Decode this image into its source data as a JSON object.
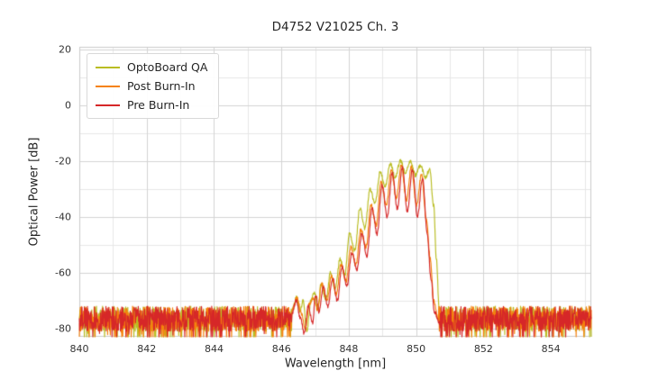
{
  "chart_data": {
    "type": "line",
    "title": "D4752 V21025 Ch. 3",
    "xlabel": "Wavelength [nm]",
    "ylabel": "Optical Power [dB]",
    "xlim": [
      840,
      855.2
    ],
    "ylim": [
      -83,
      21
    ],
    "xticks": [
      840,
      842,
      844,
      846,
      848,
      850,
      852,
      854
    ],
    "yticks": [
      20,
      0,
      -20,
      -40,
      -60,
      -80
    ],
    "grid": {
      "x_minor_step": 1,
      "y_minor_step": 10,
      "major_color": "#d4d4d4",
      "minor_color": "#e7e7e7",
      "frame_color": "#cccccc"
    },
    "legend_position": "upper left",
    "noise_floor": {
      "mean": -76.5,
      "spread": 9,
      "spike_prob": 0.08,
      "spike_extra": 8,
      "min": -83,
      "max": -68.5,
      "step_nm": 0.01
    },
    "series": [
      {
        "name": "OptoBoard QA",
        "color": "#b9bd22",
        "seed": 11,
        "envelope_range": [
          846.3,
          850.8
        ],
        "envelope": [
          [
            846.3,
            -74
          ],
          [
            846.45,
            -69
          ],
          [
            846.55,
            -74
          ],
          [
            846.65,
            -70
          ],
          [
            846.75,
            -81
          ],
          [
            846.88,
            -70
          ],
          [
            846.98,
            -67
          ],
          [
            847.08,
            -73
          ],
          [
            847.18,
            -64
          ],
          [
            847.32,
            -70
          ],
          [
            847.46,
            -60
          ],
          [
            847.6,
            -66
          ],
          [
            847.74,
            -55
          ],
          [
            847.88,
            -61
          ],
          [
            848.02,
            -46
          ],
          [
            848.18,
            -52
          ],
          [
            848.33,
            -37
          ],
          [
            848.48,
            -44
          ],
          [
            848.63,
            -30
          ],
          [
            848.78,
            -35
          ],
          [
            848.93,
            -24
          ],
          [
            849.08,
            -29
          ],
          [
            849.23,
            -21
          ],
          [
            849.38,
            -26
          ],
          [
            849.53,
            -19.8
          ],
          [
            849.68,
            -24
          ],
          [
            849.83,
            -20.3
          ],
          [
            849.98,
            -25
          ],
          [
            850.13,
            -21.3
          ],
          [
            850.27,
            -26
          ],
          [
            850.4,
            -23
          ],
          [
            850.52,
            -36
          ],
          [
            850.6,
            -55
          ],
          [
            850.68,
            -72
          ],
          [
            850.8,
            -77
          ]
        ]
      },
      {
        "name": "Post Burn-In",
        "color": "#f5820d",
        "seed": 23,
        "envelope_range": [
          846.3,
          850.66
        ],
        "envelope": [
          [
            846.3,
            -74
          ],
          [
            846.47,
            -69
          ],
          [
            846.6,
            -75
          ],
          [
            846.71,
            -80
          ],
          [
            846.83,
            -71
          ],
          [
            846.95,
            -69
          ],
          [
            847.07,
            -73
          ],
          [
            847.2,
            -64
          ],
          [
            847.35,
            -70
          ],
          [
            847.49,
            -61
          ],
          [
            847.63,
            -68
          ],
          [
            847.77,
            -57
          ],
          [
            847.92,
            -63
          ],
          [
            848.06,
            -51
          ],
          [
            848.21,
            -57
          ],
          [
            848.36,
            -44.5
          ],
          [
            848.51,
            -51
          ],
          [
            848.66,
            -35.5
          ],
          [
            848.81,
            -43
          ],
          [
            848.96,
            -27
          ],
          [
            849.11,
            -36
          ],
          [
            849.26,
            -23
          ],
          [
            849.41,
            -33
          ],
          [
            849.56,
            -21.5
          ],
          [
            849.71,
            -34
          ],
          [
            849.86,
            -22
          ],
          [
            850.01,
            -36
          ],
          [
            850.16,
            -24.5
          ],
          [
            850.3,
            -41
          ],
          [
            850.42,
            -55
          ],
          [
            850.52,
            -70
          ],
          [
            850.66,
            -77
          ]
        ]
      },
      {
        "name": "Pre Burn-In",
        "color": "#d62728",
        "seed": 37,
        "envelope_range": [
          846.3,
          850.7
        ],
        "envelope": [
          [
            846.3,
            -75
          ],
          [
            846.44,
            -70
          ],
          [
            846.56,
            -76
          ],
          [
            846.68,
            -82
          ],
          [
            846.8,
            -72
          ],
          [
            846.92,
            -78
          ],
          [
            847.02,
            -68
          ],
          [
            847.12,
            -74
          ],
          [
            847.24,
            -65
          ],
          [
            847.38,
            -72
          ],
          [
            847.52,
            -62
          ],
          [
            847.66,
            -70
          ],
          [
            847.8,
            -58
          ],
          [
            847.94,
            -65
          ],
          [
            848.09,
            -53
          ],
          [
            848.24,
            -59
          ],
          [
            848.39,
            -46
          ],
          [
            848.54,
            -54
          ],
          [
            848.69,
            -37
          ],
          [
            848.84,
            -46
          ],
          [
            848.99,
            -28.5
          ],
          [
            849.14,
            -40
          ],
          [
            849.29,
            -24
          ],
          [
            849.44,
            -37
          ],
          [
            849.59,
            -22.5
          ],
          [
            849.74,
            -38
          ],
          [
            849.89,
            -23
          ],
          [
            850.04,
            -40
          ],
          [
            850.19,
            -26
          ],
          [
            850.33,
            -46
          ],
          [
            850.44,
            -62
          ],
          [
            850.54,
            -74
          ],
          [
            850.7,
            -78
          ]
        ]
      }
    ]
  }
}
